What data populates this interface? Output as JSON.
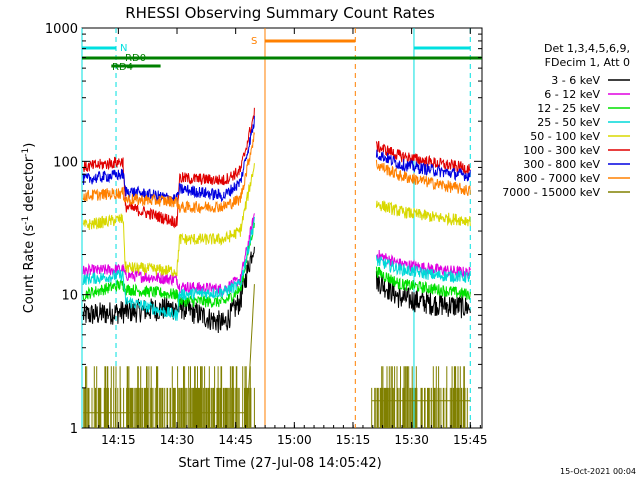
{
  "chart_data": {
    "type": "line",
    "title": "RHESSI Observing Summary Count Rates",
    "xlabel": "Start Time (27-Jul-08 14:05:42)",
    "ylabel": "Count Rate (s",
    "ylabel_sup1": "-1",
    "ylabel_mid": " detector",
    "ylabel_sup2": "-1",
    "ylabel_end": ")",
    "x_range_min": [
      14.095,
      15.8
    ],
    "y_range": [
      1,
      1000
    ],
    "y_scale": "log",
    "x_ticks": [
      {
        "t": 14.25,
        "label": "14:15"
      },
      {
        "t": 14.5,
        "label": "14:30"
      },
      {
        "t": 14.75,
        "label": "14:45"
      },
      {
        "t": 15.0,
        "label": "15:00"
      },
      {
        "t": 15.25,
        "label": "15:15"
      },
      {
        "t": 15.5,
        "label": "15:30"
      },
      {
        "t": 15.75,
        "label": "15:45"
      }
    ],
    "y_ticks": [
      {
        "v": 1,
        "label": "1"
      },
      {
        "v": 10,
        "label": "10"
      },
      {
        "v": 100,
        "label": "100"
      },
      {
        "v": 1000,
        "label": "1000"
      }
    ],
    "legend_header": [
      "Det 1,3,4,5,6,9,",
      "FDecim 1, Att 0"
    ],
    "legend_position": "right",
    "series": [
      {
        "name": "3 - 6 keV",
        "color": "#000000",
        "seg1": [
          [
            14.1,
            7
          ],
          [
            14.3,
            7.5
          ],
          [
            14.52,
            8
          ],
          [
            14.7,
            6
          ],
          [
            14.77,
            9
          ],
          [
            14.83,
            25
          ]
        ],
        "seg2": [
          [
            15.35,
            13
          ],
          [
            15.45,
            9.5
          ],
          [
            15.6,
            8.5
          ],
          [
            15.75,
            8
          ]
        ]
      },
      {
        "name": "6 - 12 keV",
        "color": "#e000e0",
        "seg1": [
          [
            14.1,
            15
          ],
          [
            14.27,
            15.5
          ],
          [
            14.28,
            14
          ],
          [
            14.5,
            13
          ],
          [
            14.51,
            11.5
          ],
          [
            14.7,
            11
          ],
          [
            14.77,
            13
          ],
          [
            14.83,
            40
          ]
        ],
        "seg2": [
          [
            15.35,
            20
          ],
          [
            15.45,
            17
          ],
          [
            15.6,
            15.5
          ],
          [
            15.75,
            14.5
          ]
        ]
      },
      {
        "name": "12 - 25 keV",
        "color": "#00e000",
        "seg1": [
          [
            14.1,
            10
          ],
          [
            14.27,
            12
          ],
          [
            14.28,
            11
          ],
          [
            14.5,
            10
          ],
          [
            14.51,
            9
          ],
          [
            14.7,
            8.8
          ],
          [
            14.77,
            11
          ],
          [
            14.83,
            35
          ]
        ],
        "seg2": [
          [
            15.35,
            15
          ],
          [
            15.45,
            12
          ],
          [
            15.6,
            11
          ],
          [
            15.75,
            10
          ]
        ]
      },
      {
        "name": "25 - 50 keV",
        "color": "#00d8d8",
        "seg1": [
          [
            14.1,
            13
          ],
          [
            14.27,
            14
          ],
          [
            14.28,
            9
          ],
          [
            14.5,
            7
          ],
          [
            14.51,
            10
          ],
          [
            14.7,
            10.5
          ],
          [
            14.77,
            12
          ],
          [
            14.83,
            36
          ]
        ],
        "seg2": [
          [
            15.35,
            18
          ],
          [
            15.45,
            15.5
          ],
          [
            15.6,
            14
          ],
          [
            15.75,
            13.5
          ]
        ]
      },
      {
        "name": "50 - 100 keV",
        "color": "#d8d800",
        "seg1": [
          [
            14.1,
            33
          ],
          [
            14.27,
            37
          ],
          [
            14.28,
            16
          ],
          [
            14.5,
            15
          ],
          [
            14.51,
            26
          ],
          [
            14.7,
            26
          ],
          [
            14.77,
            30
          ],
          [
            14.83,
            95
          ]
        ],
        "seg2": [
          [
            15.35,
            48
          ],
          [
            15.45,
            42
          ],
          [
            15.6,
            38
          ],
          [
            15.75,
            36
          ]
        ]
      },
      {
        "name": "100 - 300 keV",
        "color": "#e00000",
        "seg1": [
          [
            14.1,
            90
          ],
          [
            14.27,
            100
          ],
          [
            14.28,
            46
          ],
          [
            14.5,
            35
          ],
          [
            14.51,
            75
          ],
          [
            14.7,
            72
          ],
          [
            14.77,
            85
          ],
          [
            14.83,
            230
          ]
        ],
        "seg2": [
          [
            15.35,
            130
          ],
          [
            15.45,
            110
          ],
          [
            15.6,
            97
          ],
          [
            15.75,
            88
          ]
        ]
      },
      {
        "name": "300 - 800 keV",
        "color": "#0000e0",
        "seg1": [
          [
            14.1,
            73
          ],
          [
            14.27,
            80
          ],
          [
            14.28,
            60
          ],
          [
            14.5,
            52
          ],
          [
            14.51,
            62
          ],
          [
            14.7,
            55
          ],
          [
            14.77,
            70
          ],
          [
            14.83,
            200
          ]
        ],
        "seg2": [
          [
            15.35,
            115
          ],
          [
            15.45,
            95
          ],
          [
            15.6,
            85
          ],
          [
            15.75,
            78
          ]
        ]
      },
      {
        "name": "800 - 7000 keV",
        "color": "#ff8000",
        "seg1": [
          [
            14.1,
            55
          ],
          [
            14.27,
            58
          ],
          [
            14.28,
            52
          ],
          [
            14.5,
            50
          ],
          [
            14.51,
            45
          ],
          [
            14.7,
            46
          ],
          [
            14.77,
            52
          ],
          [
            14.83,
            160
          ]
        ],
        "seg2": [
          [
            15.35,
            95
          ],
          [
            15.45,
            78
          ],
          [
            15.6,
            68
          ],
          [
            15.75,
            60
          ]
        ]
      },
      {
        "name": "7000 - 15000 keV",
        "color": "#808000",
        "seg1": [
          [
            14.1,
            1.3
          ],
          [
            14.8,
            1.3
          ],
          [
            14.83,
            12
          ]
        ],
        "seg2": [
          [
            15.33,
            1.6
          ],
          [
            15.75,
            1.6
          ]
        ]
      }
    ],
    "flags": [
      {
        "label": "N",
        "color": "#00e0e0",
        "bars": [
          [
            14.095,
            14.24
          ],
          [
            15.51,
            15.75
          ]
        ],
        "level": "high"
      },
      {
        "label": "RD0",
        "color": "#008000",
        "bars": [
          [
            14.095,
            14.82
          ],
          [
            14.5,
            15.8
          ]
        ],
        "level": "mid"
      },
      {
        "label": "RD4",
        "color": "#008000",
        "bars": [
          [
            14.22,
            14.43
          ]
        ],
        "level": "low"
      },
      {
        "label": "S",
        "color": "#ff8000",
        "bars": [
          [
            14.875,
            15.26
          ]
        ],
        "level": "top"
      }
    ],
    "vlines": [
      {
        "t": 14.095,
        "color": "#00e0e0",
        "dashed": false
      },
      {
        "t": 14.24,
        "color": "#00e0e0",
        "dashed": true
      },
      {
        "t": 14.875,
        "color": "#ff8000",
        "dashed": false
      },
      {
        "t": 15.26,
        "color": "#ff8000",
        "dashed": true
      },
      {
        "t": 15.51,
        "color": "#00e0e0",
        "dashed": false
      },
      {
        "t": 15.75,
        "color": "#00e0e0",
        "dashed": true
      }
    ]
  },
  "footer": {
    "timestamp": "15-Oct-2021 00:04"
  }
}
